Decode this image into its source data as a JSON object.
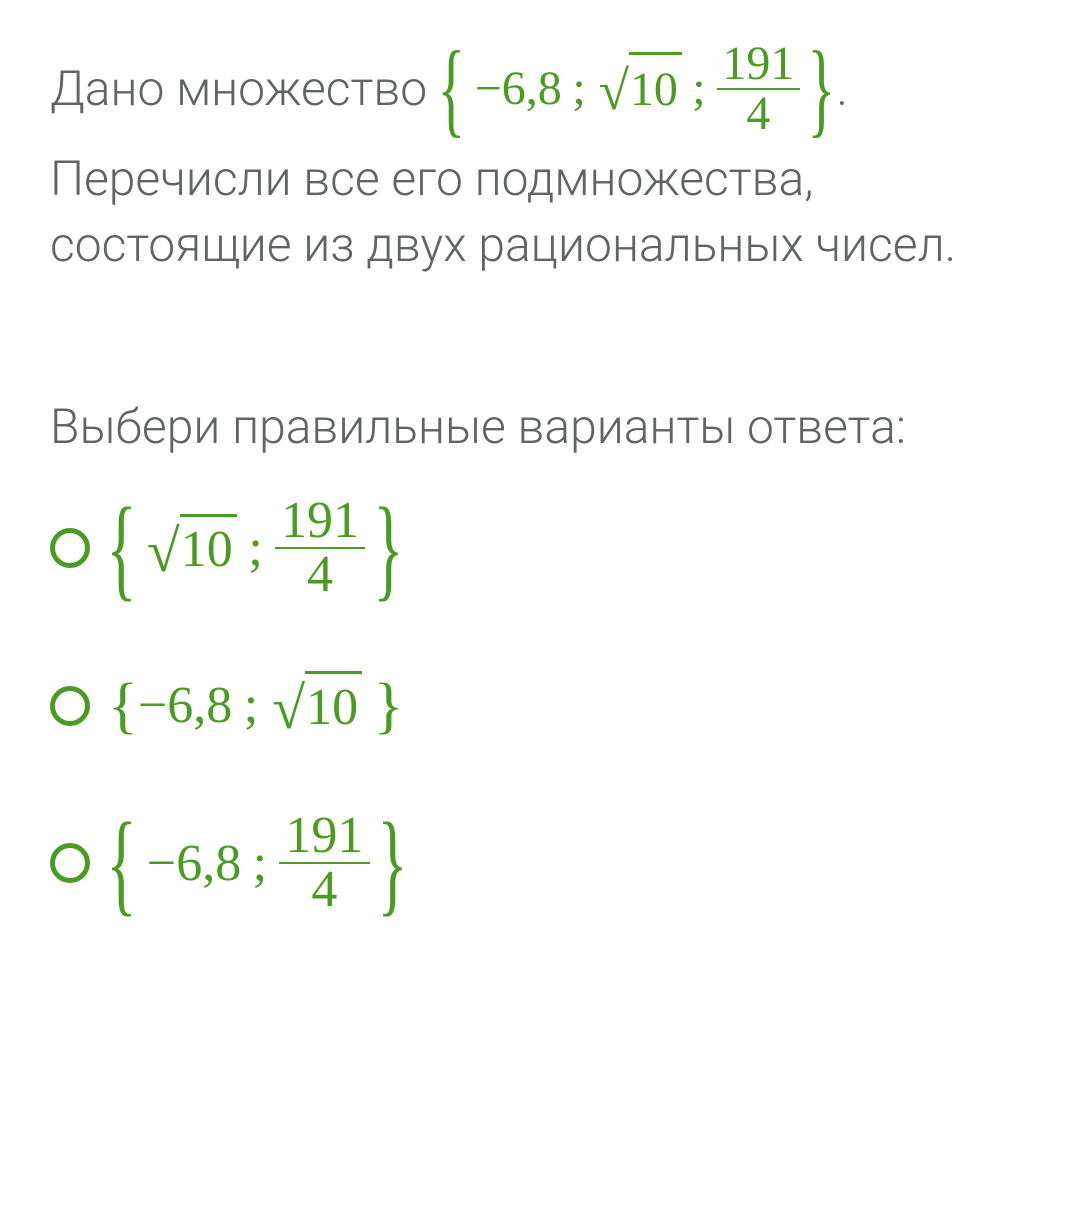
{
  "colors": {
    "text": "#606466",
    "accent": "#4a9b22",
    "background": "#ffffff"
  },
  "typography": {
    "body_fontsize_pt": 36,
    "math_font": "Georgia serif",
    "weight": 300
  },
  "question": {
    "lead_text": "Дано множество",
    "trailing_period": ".",
    "given_set": {
      "members": [
        {
          "type": "decimal",
          "display": "−6,8"
        },
        {
          "type": "sqrt",
          "radicand": "10"
        },
        {
          "type": "fraction",
          "num": "191",
          "den": "4"
        }
      ]
    },
    "body_line1": "Перечисли все его подмножества,",
    "body_line2": "состоящие из двух рациональных чисел."
  },
  "prompt": "Выбери правильные варианты ответа:",
  "options": [
    {
      "selected": false,
      "brace": "large",
      "members": [
        {
          "type": "sqrt",
          "radicand": "10"
        },
        {
          "type": "fraction",
          "num": "191",
          "den": "4"
        }
      ]
    },
    {
      "selected": false,
      "brace": "small",
      "members": [
        {
          "type": "decimal",
          "display": "−6,8"
        },
        {
          "type": "sqrt",
          "radicand": "10"
        }
      ]
    },
    {
      "selected": false,
      "brace": "large",
      "members": [
        {
          "type": "decimal",
          "display": "−6,8"
        },
        {
          "type": "fraction",
          "num": "191",
          "den": "4"
        }
      ]
    }
  ]
}
